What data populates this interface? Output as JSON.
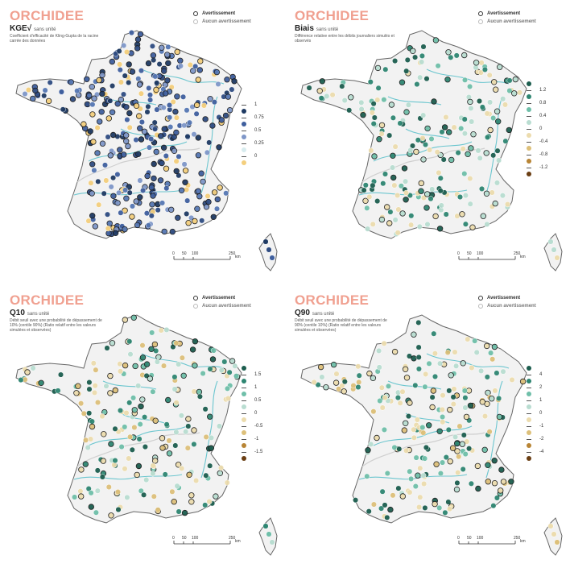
{
  "panels": [
    {
      "id": "kge",
      "title": "ORCHIDEE",
      "metric": "KGE√",
      "unit": "sans unité",
      "description": "Coefficient d'efficacité de Kling-Gupta de la racine carrée des données",
      "legend_warning": "Avertissement",
      "legend_no_warning": "Aucun avertissement",
      "scale_labels": [
        "0",
        "50",
        "100",
        "250"
      ],
      "scale_unit": "km",
      "color_legend": [
        {
          "label": "1",
          "color": ""
        },
        {
          "label": "",
          "color": "#1f3a63"
        },
        {
          "label": "0.75",
          "color": ""
        },
        {
          "label": "",
          "color": "#3f5f9e"
        },
        {
          "label": "0.5",
          "color": ""
        },
        {
          "label": "",
          "color": "#7f97c8"
        },
        {
          "label": "0.25",
          "color": ""
        },
        {
          "label": "",
          "color": "#d8ecef"
        },
        {
          "label": "0",
          "color": ""
        },
        {
          "label": "",
          "color": "#f4cf7d"
        }
      ],
      "palette": [
        "#1f3a63",
        "#2f4c82",
        "#3f5f9e",
        "#5677b3",
        "#7f97c8",
        "#f4cf7d"
      ]
    },
    {
      "id": "biais",
      "title": "ORCHIDEE",
      "metric": "Biais",
      "unit": "sans unité",
      "description": "Différence relative entre les débits journaliers simulés et observés",
      "legend_warning": "Avertissement",
      "legend_no_warning": "Aucun avertissement",
      "scale_labels": [
        "0",
        "50",
        "100",
        "250"
      ],
      "scale_unit": "km",
      "color_legend": [
        {
          "label": "",
          "color": "#1d5e4f"
        },
        {
          "label": "1.2",
          "color": ""
        },
        {
          "label": "",
          "color": "#2f8672"
        },
        {
          "label": "0.8",
          "color": ""
        },
        {
          "label": "",
          "color": "#6fbfa9"
        },
        {
          "label": "0.4",
          "color": ""
        },
        {
          "label": "",
          "color": "#b9ddd1"
        },
        {
          "label": "0",
          "color": ""
        },
        {
          "label": "",
          "color": "#ecdcae"
        },
        {
          "label": "-0.4",
          "color": ""
        },
        {
          "label": "",
          "color": "#ddc07a"
        },
        {
          "label": "-0.8",
          "color": ""
        },
        {
          "label": "",
          "color": "#b88535"
        },
        {
          "label": "-1.2",
          "color": ""
        },
        {
          "label": "",
          "color": "#6b3f14"
        }
      ],
      "palette": [
        "#b9ddd1",
        "#b9ddd1",
        "#ecdcae",
        "#ecdcae",
        "#6fbfa9",
        "#2f8672",
        "#1d5e4f"
      ]
    },
    {
      "id": "q10",
      "title": "ORCHIDEE",
      "metric": "Q10",
      "unit": "sans unité",
      "description": "Débit seuil avec une probabilité de dépassement de 10% (centile 90%) (Ratio relatif entre les valeurs simulées et observées)",
      "legend_warning": "Avertissement",
      "legend_no_warning": "Aucun avertissement",
      "scale_labels": [
        "0",
        "50",
        "100",
        "250"
      ],
      "scale_unit": "km",
      "color_legend": [
        {
          "label": "",
          "color": "#1d5e4f"
        },
        {
          "label": "1.5",
          "color": ""
        },
        {
          "label": "",
          "color": "#2f8672"
        },
        {
          "label": "1",
          "color": ""
        },
        {
          "label": "",
          "color": "#6fbfa9"
        },
        {
          "label": "0.5",
          "color": ""
        },
        {
          "label": "",
          "color": "#b9ddd1"
        },
        {
          "label": "0",
          "color": ""
        },
        {
          "label": "",
          "color": "#ecdcae"
        },
        {
          "label": "-0.5",
          "color": ""
        },
        {
          "label": "",
          "color": "#ddc07a"
        },
        {
          "label": "-1",
          "color": ""
        },
        {
          "label": "",
          "color": "#b88535"
        },
        {
          "label": "-1.5",
          "color": ""
        },
        {
          "label": "",
          "color": "#6b3f14"
        }
      ],
      "palette": [
        "#2f8672",
        "#6fbfa9",
        "#b9ddd1",
        "#ecdcae",
        "#ecdcae",
        "#ddc07a",
        "#1d5e4f"
      ]
    },
    {
      "id": "q90",
      "title": "ORCHIDEE",
      "metric": "Q90",
      "unit": "sans unité",
      "description": "Débit seuil avec une probabilité de dépassement de 90% (centile 10%) (Ratio relatif entre les valeurs simulées et observées)",
      "legend_warning": "Avertissement",
      "legend_no_warning": "Aucun avertissement",
      "scale_labels": [
        "0",
        "50",
        "100",
        "250"
      ],
      "scale_unit": "km",
      "color_legend": [
        {
          "label": "",
          "color": "#1d5e4f"
        },
        {
          "label": "4",
          "color": ""
        },
        {
          "label": "",
          "color": "#2f8672"
        },
        {
          "label": "2",
          "color": ""
        },
        {
          "label": "",
          "color": "#6fbfa9"
        },
        {
          "label": "1",
          "color": ""
        },
        {
          "label": "",
          "color": "#b9ddd1"
        },
        {
          "label": "0",
          "color": ""
        },
        {
          "label": "",
          "color": "#ecdcae"
        },
        {
          "label": "-1",
          "color": ""
        },
        {
          "label": "",
          "color": "#ddc07a"
        },
        {
          "label": "-2",
          "color": ""
        },
        {
          "label": "",
          "color": "#b88535"
        },
        {
          "label": "-4",
          "color": ""
        },
        {
          "label": "",
          "color": "#6b3f14"
        }
      ],
      "palette": [
        "#ecdcae",
        "#ecdcae",
        "#ddc07a",
        "#b9ddd1",
        "#6fbfa9",
        "#2f8672",
        "#1d5e4f"
      ]
    }
  ]
}
